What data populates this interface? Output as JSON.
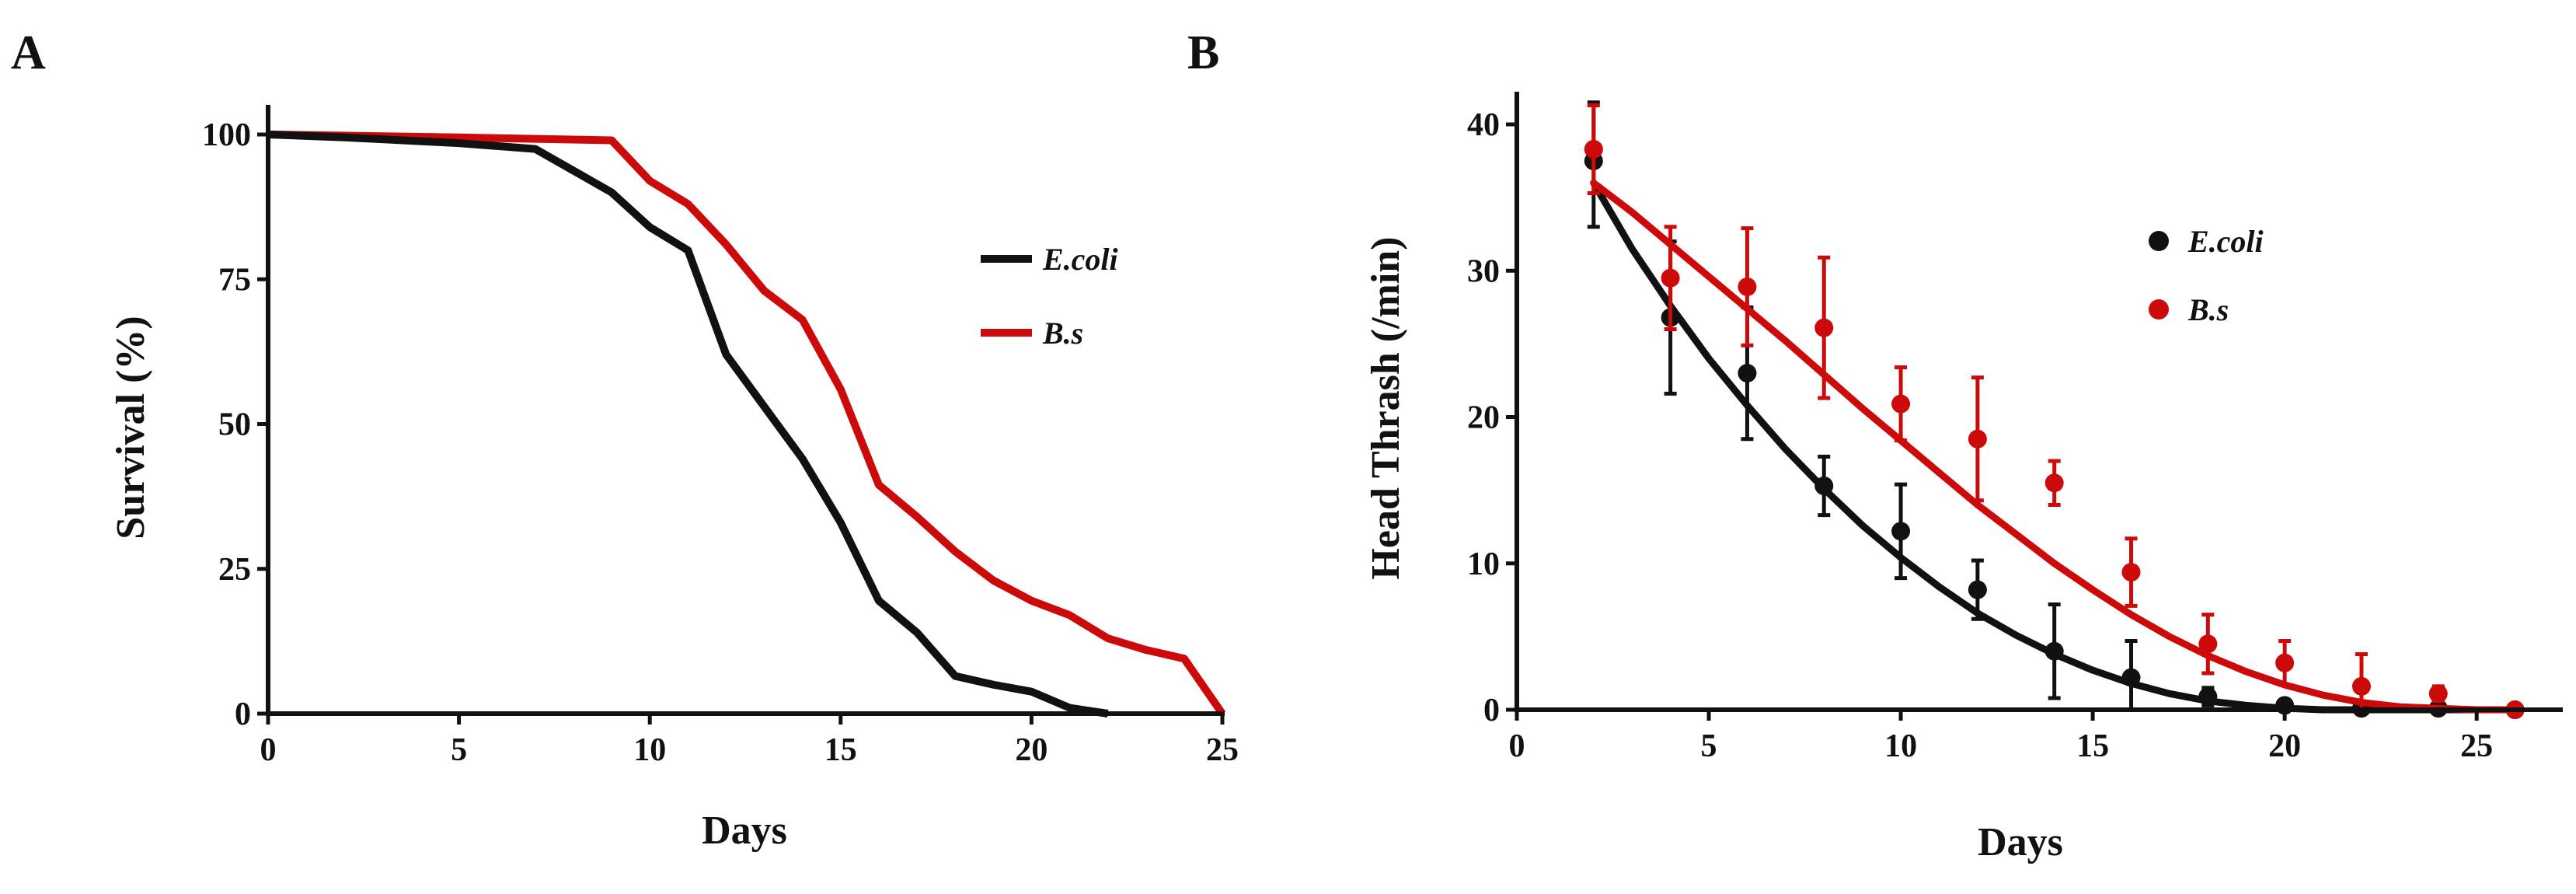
{
  "figure": {
    "panel_a_letter": "A",
    "panel_b_letter": "B"
  },
  "colors": {
    "ecoli": "#111111",
    "bs": "#cc0a0a"
  },
  "chart_data": [
    {
      "id": "A",
      "type": "line",
      "title": "",
      "xlabel": "Days",
      "ylabel": "Survival (%)",
      "xlim": [
        0,
        25
      ],
      "ylim": [
        0,
        100
      ],
      "xticks": [
        0,
        5,
        10,
        15,
        20,
        25
      ],
      "yticks": [
        0,
        25,
        50,
        75,
        100
      ],
      "legend_position": "right-middle",
      "series": [
        {
          "name": "E.coli",
          "color": "#111111",
          "x": [
            0,
            2,
            5,
            7,
            9,
            10,
            11,
            12,
            13,
            14,
            15,
            16,
            17,
            18,
            19,
            20,
            21,
            22
          ],
          "y": [
            100,
            99.5,
            98.5,
            97.5,
            90,
            84,
            80,
            62,
            53,
            44,
            33,
            19.5,
            14,
            6.5,
            5,
            3.8,
            1,
            0
          ]
        },
        {
          "name": "B.s",
          "color": "#cc0a0a",
          "x": [
            0,
            5,
            9,
            10,
            11,
            12,
            13,
            14,
            15,
            16,
            17,
            18,
            19,
            20,
            21,
            22,
            23,
            24,
            25
          ],
          "y": [
            100,
            99.5,
            99,
            92,
            88,
            81,
            73,
            68,
            56,
            39.5,
            34,
            28,
            23,
            19.5,
            17,
            13,
            11,
            9.5,
            0
          ]
        }
      ]
    },
    {
      "id": "B",
      "type": "scatter",
      "title": "",
      "xlabel": "Days",
      "ylabel": "Head Thrash (/min)",
      "xlim": [
        0,
        27
      ],
      "ylim": [
        0,
        40
      ],
      "xticks": [
        0,
        5,
        10,
        15,
        20,
        25
      ],
      "yticks": [
        0,
        10,
        20,
        30,
        40
      ],
      "legend_position": "upper-right",
      "series": [
        {
          "name": "E.coli",
          "color": "#111111",
          "x": [
            2,
            4,
            6,
            8,
            10,
            12,
            14,
            16,
            18,
            20,
            22,
            24,
            26
          ],
          "y": [
            37.5,
            26.8,
            23,
            15.3,
            12.2,
            8.2,
            4,
            2.2,
            0.9,
            0.3,
            0.1,
            0.1,
            0
          ],
          "err": [
            4.5,
            5.2,
            4.5,
            2,
            3.2,
            2,
            3.2,
            2.5,
            0.6,
            0.3,
            0.2,
            0.2,
            0.2
          ],
          "fit_x": [
            2,
            3,
            4,
            5,
            6,
            7,
            8,
            9,
            10,
            11,
            12,
            13,
            14,
            15,
            16,
            17,
            18,
            19,
            20,
            21,
            22,
            23,
            24,
            25,
            26
          ],
          "fit_y": [
            36.0,
            31.5,
            27.6,
            24.0,
            20.8,
            17.8,
            15.1,
            12.6,
            10.4,
            8.4,
            6.6,
            5.1,
            3.8,
            2.7,
            1.8,
            1.1,
            0.6,
            0.3,
            0.1,
            0,
            0,
            0,
            0,
            0,
            0
          ]
        },
        {
          "name": "B.s",
          "color": "#cc0a0a",
          "x": [
            2,
            4,
            6,
            8,
            10,
            12,
            14,
            16,
            18,
            20,
            22,
            24,
            26
          ],
          "y": [
            38.3,
            29.5,
            28.9,
            26.1,
            20.9,
            18.5,
            15.5,
            9.4,
            4.5,
            3.2,
            1.6,
            1.1,
            0
          ],
          "err": [
            3,
            3.5,
            4,
            4.8,
            2.5,
            4.2,
            1.5,
            2.3,
            2,
            1.5,
            2.2,
            0.5,
            0.3
          ],
          "fit_x": [
            2,
            3,
            4,
            5,
            6,
            7,
            8,
            9,
            10,
            11,
            12,
            13,
            14,
            15,
            16,
            17,
            18,
            19,
            20,
            21,
            22,
            23,
            24,
            25,
            26
          ],
          "fit_y": [
            36.0,
            34.0,
            31.8,
            29.6,
            27.4,
            25.2,
            22.9,
            20.6,
            18.4,
            16.2,
            14.0,
            12.0,
            10.0,
            8.2,
            6.5,
            5.0,
            3.7,
            2.6,
            1.7,
            1.0,
            0.5,
            0.2,
            0.1,
            0,
            0
          ]
        }
      ]
    }
  ]
}
